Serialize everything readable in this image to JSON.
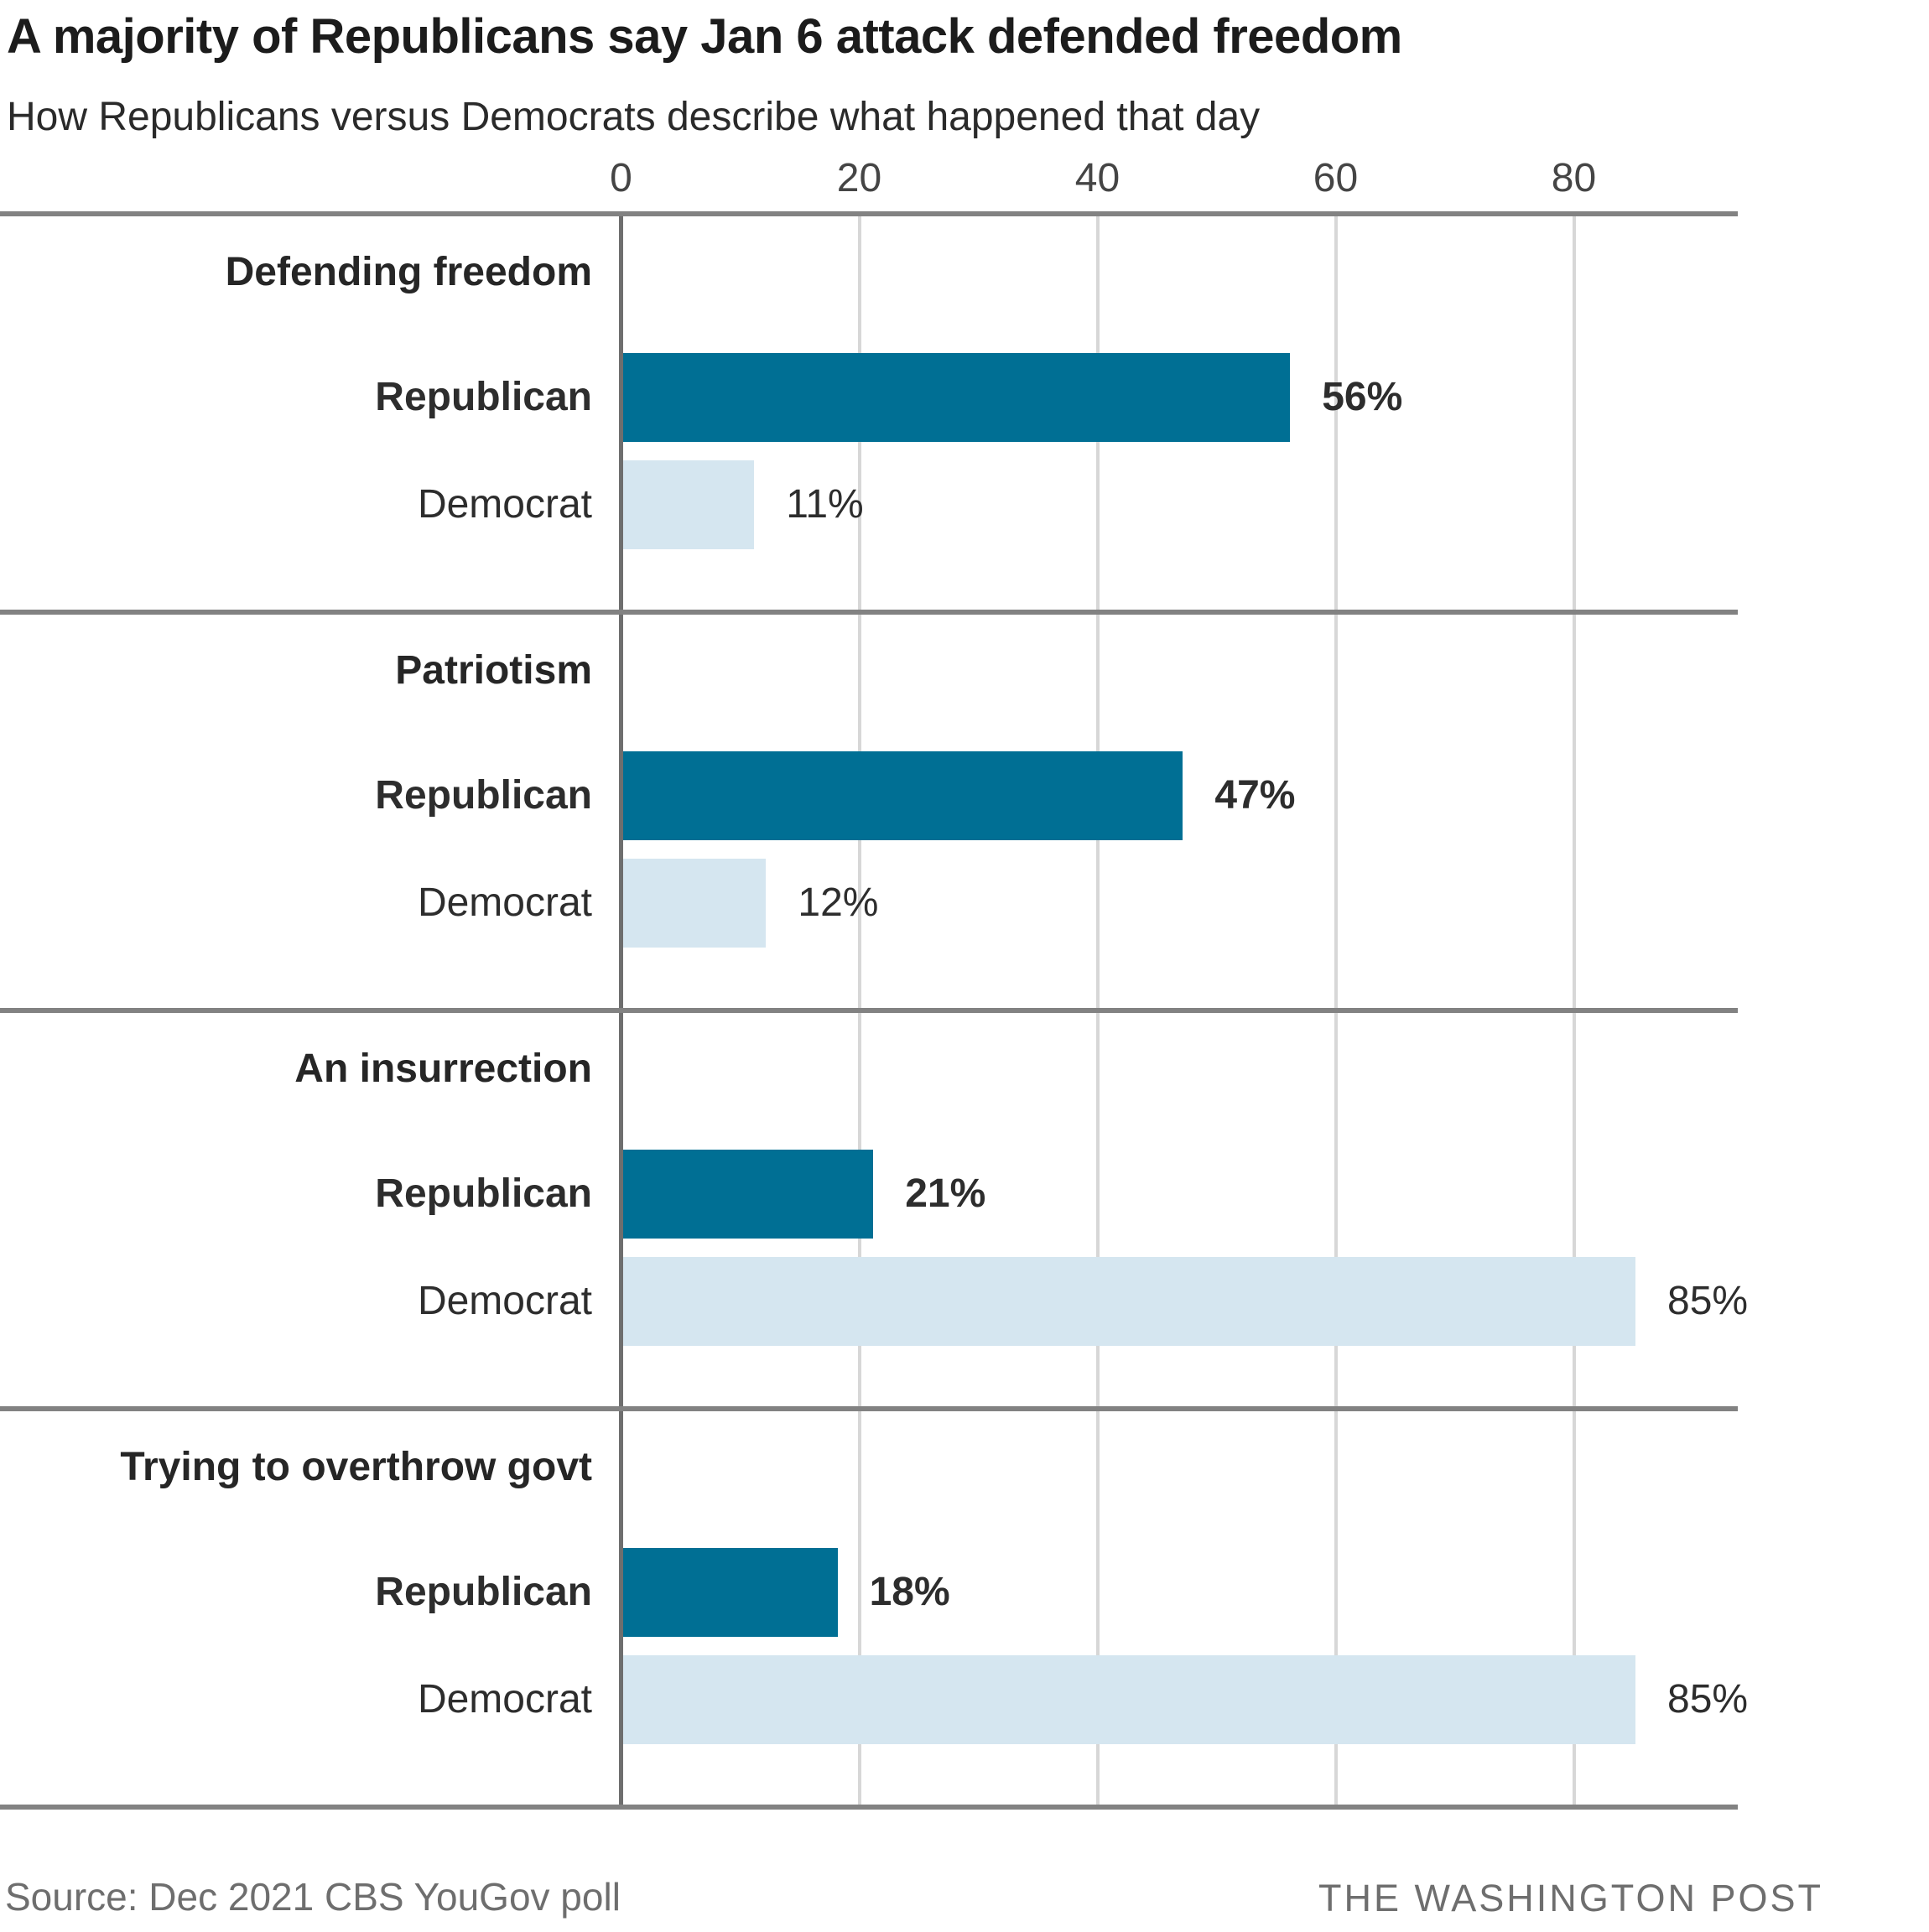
{
  "header": {
    "title": "A majority of Republicans say Jan 6 attack defended freedom",
    "subtitle": "How Republicans versus Democrats describe what happened that day"
  },
  "footer": {
    "source": "Source: Dec 2021 CBS YouGov poll",
    "attribution": "THE WASHINGTON POST"
  },
  "colors": {
    "republican_bar": "#006f94",
    "democrat_bar": "#d5e6f0",
    "frame_line": "#828282",
    "zero_axis_line": "#6e6e6e",
    "gridline": "#d7d7d7",
    "title_text": "#1c1c1c",
    "label_text": "#2d2d2d",
    "muted_text": "#6e6e6e"
  },
  "chart_data": {
    "type": "bar",
    "orientation": "horizontal",
    "title": "A majority of Republicans say Jan 6 attack defended freedom",
    "subtitle": "How Republicans versus Democrats describe what happened that day",
    "unit": "percent",
    "xlabel": "",
    "ylabel": "",
    "xlim": [
      0,
      94
    ],
    "x_ticks": [
      0,
      20,
      40,
      60,
      80
    ],
    "grid": true,
    "legend_position": "none",
    "categories": [
      "Defending freedom",
      "Patriotism",
      "An insurrection",
      "Trying to overthrow govt"
    ],
    "series": [
      {
        "name": "Republican",
        "color": "#006f94",
        "emphasis": "bold",
        "values": [
          56,
          47,
          21,
          18
        ],
        "value_labels": [
          "56%",
          "47%",
          "21%",
          "18%"
        ]
      },
      {
        "name": "Democrat",
        "color": "#d5e6f0",
        "emphasis": "regular",
        "values": [
          11,
          12,
          85,
          85
        ],
        "value_labels": [
          "11%",
          "12%",
          "85%",
          "85%"
        ]
      }
    ]
  }
}
